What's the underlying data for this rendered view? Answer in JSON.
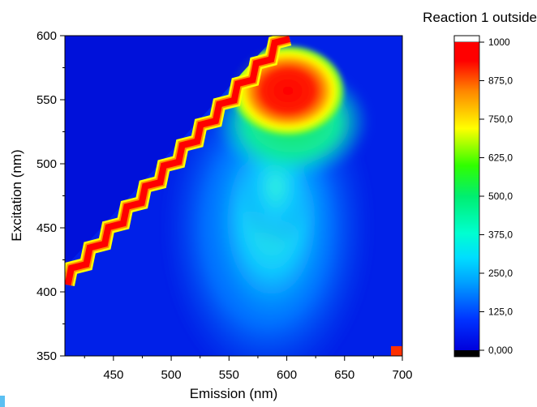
{
  "chart_data": {
    "type": "heatmap",
    "xlabel": "Emission (nm)",
    "ylabel": "Excitation (nm)",
    "xlim": [
      408,
      700
    ],
    "ylim": [
      350,
      600
    ],
    "x_ticks": [
      "450",
      "500",
      "550",
      "600",
      "650",
      "700"
    ],
    "y_ticks": [
      "350",
      "400",
      "450",
      "500",
      "550",
      "600"
    ],
    "legend_title": "Reaction 1 outside",
    "colorbar": {
      "range": [
        0,
        1000
      ],
      "tick_labels": [
        "0,000",
        "125,0",
        "250,0",
        "375,0",
        "500,0",
        "625,0",
        "750,0",
        "875,0",
        "1000"
      ],
      "colors": [
        "#000000",
        "#0000dc",
        "#0050ff",
        "#00b4ff",
        "#00ffd2",
        "#00e650",
        "#64ff00",
        "#ffff00",
        "#ff9600",
        "#ff0000",
        "#ffffff"
      ]
    },
    "features": [
      {
        "label": "Rayleigh scatter (Emission = Excitation)",
        "x": [
          408,
          600
        ],
        "y": [
          408,
          600
        ],
        "value": 1000
      },
      {
        "label": "Main fluorescence peak",
        "emission": 600,
        "excitation": 550,
        "value": 960
      },
      {
        "label": "Broad emission band",
        "emission": 590,
        "excitation_range": [
          400,
          560
        ],
        "value": 300
      }
    ]
  }
}
